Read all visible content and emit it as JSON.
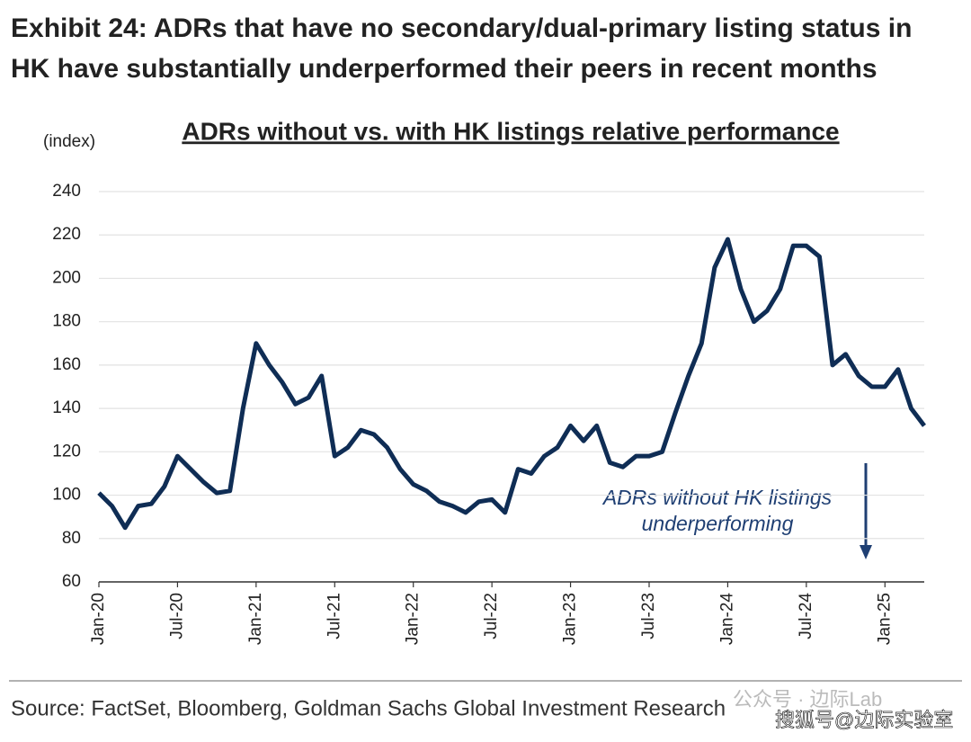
{
  "chart_data": {
    "type": "line",
    "exhibit_title": "Exhibit 24: ADRs that have no secondary/dual-primary listing status in HK have substantially underperformed their peers in recent months",
    "title": "ADRs without vs. with HK listings relative performance",
    "y_label": "(index)",
    "annotation": [
      "ADRs without HK listings",
      "underperforming"
    ],
    "source": "Source: FactSet, Bloomberg, Goldman Sachs Global Investment Research",
    "watermarks": [
      "公众号 · 边际Lab",
      "搜狐号@边际实验室"
    ],
    "categories": [
      "Jan-20",
      null,
      null,
      null,
      null,
      null,
      "Jul-20",
      null,
      null,
      null,
      null,
      null,
      "Jan-21",
      null,
      null,
      null,
      null,
      null,
      "Jul-21",
      null,
      null,
      null,
      null,
      null,
      "Jan-22",
      null,
      null,
      null,
      null,
      null,
      "Jul-22",
      null,
      null,
      null,
      null,
      null,
      "Jan-23",
      null,
      null,
      null,
      null,
      null,
      "Jul-23",
      null,
      null,
      null,
      null,
      null,
      "Jan-24",
      null,
      null,
      null,
      null,
      null,
      "Jul-24",
      null,
      null,
      null,
      null,
      null,
      "Jan-25",
      null,
      null,
      null
    ],
    "series": [
      {
        "name": "ADRs without vs. with HK listings",
        "color": "#0f2d55",
        "values": [
          101,
          95,
          85,
          95,
          96,
          104,
          118,
          112,
          106,
          101,
          102,
          140,
          170,
          160,
          152,
          142,
          145,
          155,
          118,
          122,
          130,
          128,
          122,
          112,
          105,
          102,
          97,
          95,
          92,
          97,
          98,
          92,
          112,
          110,
          118,
          122,
          132,
          125,
          132,
          115,
          113,
          118,
          118,
          120,
          138,
          155,
          170,
          205,
          218,
          195,
          180,
          185,
          195,
          215,
          215,
          210,
          160,
          165,
          155,
          150,
          150,
          158,
          140,
          132
        ]
      }
    ],
    "ylim": [
      60,
      240
    ],
    "yticks": [
      60,
      80,
      100,
      120,
      140,
      160,
      180,
      200,
      220,
      240
    ],
    "grid": true
  }
}
